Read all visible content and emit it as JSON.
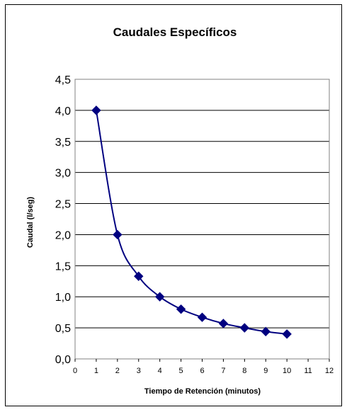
{
  "chart_data": {
    "type": "line",
    "title": "Caudales Específicos",
    "xlabel": "Tiempo de Retención (minutos)",
    "ylabel": "Caudal (l/seg)",
    "xlim": [
      0,
      12
    ],
    "ylim": [
      0,
      4.5
    ],
    "x_ticks": [
      "0",
      "1",
      "2",
      "3",
      "4",
      "5",
      "6",
      "7",
      "8",
      "9",
      "10",
      "11",
      "12"
    ],
    "y_ticks": [
      "0,0",
      "0,5",
      "1,0",
      "1,5",
      "2,0",
      "2,5",
      "3,0",
      "3,5",
      "4,0",
      "4,5"
    ],
    "grid": "horizontal",
    "line_smoothed": true,
    "marker": "diamond",
    "series": [
      {
        "color": "#000080",
        "x": [
          1,
          2,
          3,
          4,
          5,
          6,
          7,
          8,
          9,
          10
        ],
        "y": [
          4.0,
          2.0,
          1.33,
          1.0,
          0.8,
          0.67,
          0.57,
          0.5,
          0.44,
          0.4
        ]
      }
    ],
    "plot_background": "#ffffff",
    "legend": "none"
  }
}
